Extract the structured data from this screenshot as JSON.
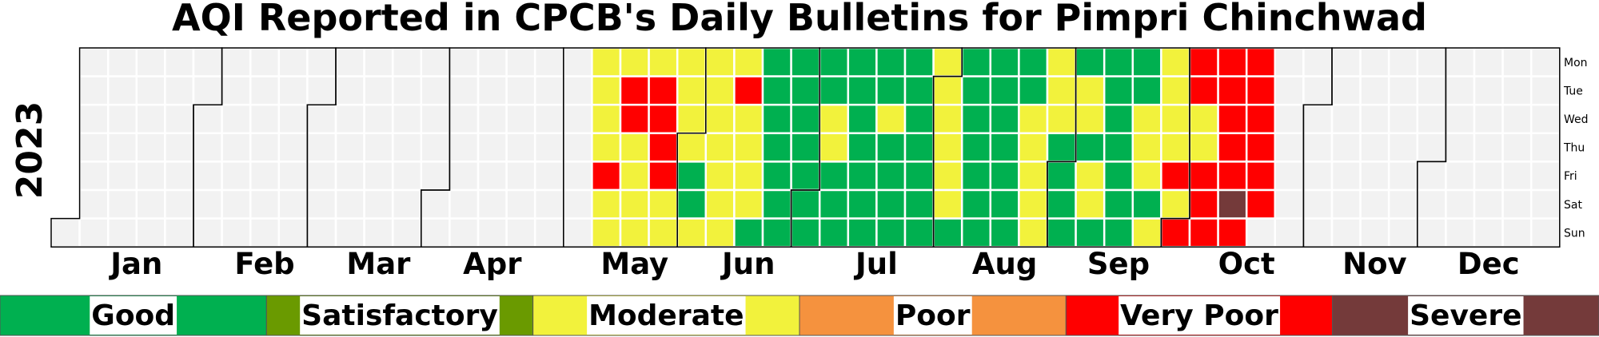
{
  "chart_data": {
    "type": "heatmap",
    "title": "AQI Reported in CPCB's Daily Bulletins for Pimpri Chinchwad",
    "year": "2023",
    "months": [
      "Jan",
      "Feb",
      "Mar",
      "Apr",
      "May",
      "Jun",
      "Jul",
      "Aug",
      "Sep",
      "Oct",
      "Nov",
      "Dec"
    ],
    "weekdays": [
      "Mon",
      "Tue",
      "Wed",
      "Thu",
      "Fri",
      "Sat",
      "Sun"
    ],
    "first_day_weekday": 6,
    "categories": [
      {
        "key": "G",
        "name": "Good",
        "color": "#00b050"
      },
      {
        "key": "S",
        "name": "Satisfactory",
        "color": "#6a9a00"
      },
      {
        "key": "M",
        "name": "Moderate",
        "color": "#f2f23c"
      },
      {
        "key": "P",
        "name": "Poor",
        "color": "#f5923e"
      },
      {
        "key": "VP",
        "name": "Very Poor",
        "color": "#ff0000"
      },
      {
        "key": "SV",
        "name": "Severe",
        "color": "#743a3a"
      }
    ],
    "no_data_color": "#f2f2f2",
    "weekly_values": [
      {
        "week_start": "2023-05-08",
        "days": [
          "M",
          "M",
          "M",
          "M",
          "VP",
          "M",
          "M"
        ]
      },
      {
        "week_start": "2023-05-15",
        "days": [
          "M",
          "VP",
          "VP",
          "M",
          "M",
          "M",
          "M"
        ]
      },
      {
        "week_start": "2023-05-22",
        "days": [
          "M",
          "VP",
          "VP",
          "VP",
          "VP",
          "M",
          "M"
        ]
      },
      {
        "week_start": "2023-05-29",
        "days": [
          "M",
          "M",
          "M",
          "M",
          "G",
          "G",
          "M"
        ]
      },
      {
        "week_start": "2023-06-05",
        "days": [
          "M",
          "M",
          "M",
          "M",
          "M",
          "M",
          "M"
        ]
      },
      {
        "week_start": "2023-06-12",
        "days": [
          "M",
          "VP",
          "M",
          "M",
          "M",
          "M",
          "G"
        ]
      },
      {
        "week_start": "2023-06-19",
        "days": [
          "G",
          "G",
          "G",
          "G",
          "G",
          "G",
          "G"
        ]
      },
      {
        "week_start": "2023-06-26",
        "days": [
          "G",
          "G",
          "G",
          "G",
          "G",
          "G",
          "G"
        ]
      },
      {
        "week_start": "2023-07-03",
        "days": [
          "G",
          "G",
          "M",
          "M",
          "G",
          "G",
          "G"
        ]
      },
      {
        "week_start": "2023-07-10",
        "days": [
          "G",
          "G",
          "G",
          "G",
          "G",
          "G",
          "G"
        ]
      },
      {
        "week_start": "2023-07-17",
        "days": [
          "G",
          "G",
          "M",
          "G",
          "G",
          "G",
          "G"
        ]
      },
      {
        "week_start": "2023-07-24",
        "days": [
          "G",
          "G",
          "G",
          "G",
          "G",
          "G",
          "G"
        ]
      },
      {
        "week_start": "2023-07-31",
        "days": [
          "M",
          "M",
          "M",
          "M",
          "M",
          "M",
          "G"
        ]
      },
      {
        "week_start": "2023-08-07",
        "days": [
          "G",
          "G",
          "G",
          "G",
          "G",
          "G",
          "G"
        ]
      },
      {
        "week_start": "2023-08-14",
        "days": [
          "G",
          "G",
          "G",
          "G",
          "G",
          "G",
          "G"
        ]
      },
      {
        "week_start": "2023-08-21",
        "days": [
          "G",
          "G",
          "M",
          "M",
          "M",
          "M",
          "M"
        ]
      },
      {
        "week_start": "2023-08-28",
        "days": [
          "M",
          "M",
          "M",
          "G",
          "G",
          "G",
          "G"
        ]
      },
      {
        "week_start": "2023-09-04",
        "days": [
          "G",
          "M",
          "M",
          "G",
          "M",
          "M",
          "G"
        ]
      },
      {
        "week_start": "2023-09-11",
        "days": [
          "G",
          "G",
          "G",
          "G",
          "G",
          "G",
          "G"
        ]
      },
      {
        "week_start": "2023-09-18",
        "days": [
          "G",
          "G",
          "M",
          "M",
          "M",
          "G",
          "M"
        ]
      },
      {
        "week_start": "2023-09-25",
        "days": [
          "M",
          "M",
          "M",
          "M",
          "VP",
          "M",
          "VP"
        ]
      },
      {
        "week_start": "2023-10-02",
        "days": [
          "VP",
          "VP",
          "M",
          "M",
          "VP",
          "VP",
          "VP"
        ]
      },
      {
        "week_start": "2023-10-09",
        "days": [
          "VP",
          "VP",
          "VP",
          "VP",
          "VP",
          "SV",
          "VP"
        ]
      },
      {
        "week_start": "2023-10-16",
        "days": [
          "VP",
          "VP",
          "VP",
          "VP",
          "VP",
          "VP",
          null
        ]
      }
    ],
    "legend": [
      "Good",
      "Satisfactory",
      "Moderate",
      "Poor",
      "Very Poor",
      "Severe"
    ]
  }
}
